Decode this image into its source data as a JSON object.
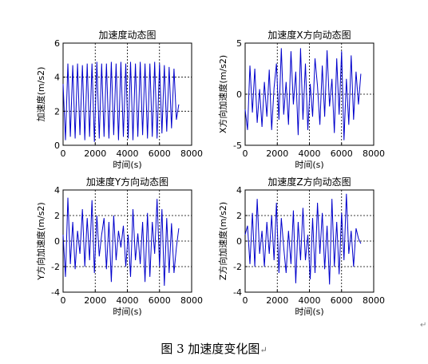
{
  "caption": {
    "text": "图 3  加速度变化图",
    "mark": "↵"
  },
  "stray_mark": "↵",
  "chart_data": [
    {
      "type": "line",
      "title": "加速度动态图",
      "xlabel": "时间(s)",
      "ylabel": "加速度(m/s2)",
      "xlim": [
        0,
        8000
      ],
      "ylim": [
        0,
        6
      ],
      "xticks": [
        0,
        2000,
        4000,
        6000,
        8000
      ],
      "yticks": [
        0,
        2,
        4,
        6
      ],
      "grid": true,
      "grid_style": "dotted",
      "color": "#0000cc",
      "duration": 7200,
      "x": [
        0,
        150,
        300,
        450,
        600,
        750,
        900,
        1050,
        1200,
        1350,
        1500,
        1650,
        1800,
        1950,
        2100,
        2250,
        2400,
        2550,
        2700,
        2850,
        3000,
        3150,
        3300,
        3450,
        3600,
        3750,
        3900,
        4050,
        4200,
        4350,
        4500,
        4650,
        4800,
        4950,
        5100,
        5250,
        5400,
        5550,
        5700,
        5850,
        6000,
        6150,
        6300,
        6450,
        6600,
        6750,
        6900,
        7050,
        7200
      ],
      "y": [
        3.6,
        0.3,
        4.8,
        0.5,
        4.7,
        0.4,
        4.8,
        0.6,
        4.7,
        0.3,
        4.8,
        0.5,
        4.8,
        0.2,
        4.9,
        0.4,
        4.8,
        0.5,
        4.8,
        0.4,
        4.9,
        0.6,
        4.8,
        0.3,
        4.9,
        0.5,
        4.8,
        0.4,
        4.9,
        0.3,
        4.8,
        0.5,
        4.9,
        0.6,
        4.8,
        0.4,
        4.8,
        0.5,
        4.9,
        0.4,
        4.8,
        0.7,
        4.7,
        0.8,
        4.6,
        1.0,
        4.5,
        1.5,
        2.4
      ]
    },
    {
      "type": "line",
      "title": "加速度X方向动态图",
      "xlabel": "时间(s)",
      "ylabel": "X方向加速度(m/s2)",
      "xlim": [
        0,
        8000
      ],
      "ylim": [
        -5,
        5
      ],
      "xticks": [
        0,
        2000,
        4000,
        6000,
        8000
      ],
      "yticks": [
        -5,
        0,
        5
      ],
      "grid": true,
      "grid_style": "dotted",
      "color": "#0000cc",
      "duration": 7200,
      "x": [
        0,
        150,
        300,
        450,
        600,
        750,
        900,
        1050,
        1200,
        1350,
        1500,
        1650,
        1800,
        1950,
        2100,
        2250,
        2400,
        2550,
        2700,
        2850,
        3000,
        3150,
        3300,
        3450,
        3600,
        3750,
        3900,
        4050,
        4200,
        4350,
        4500,
        4650,
        4800,
        4950,
        5100,
        5250,
        5400,
        5550,
        5700,
        5850,
        6000,
        6150,
        6300,
        6450,
        6600,
        6750,
        6900,
        7050,
        7200
      ],
      "y": [
        -1.5,
        -3.5,
        2.8,
        -1.8,
        2.5,
        -2.8,
        0.5,
        -3.2,
        1.2,
        -2.2,
        2.4,
        -3.5,
        0.6,
        3.0,
        -2.5,
        4.5,
        -2.0,
        1.2,
        -3.0,
        4.2,
        -1.0,
        2.2,
        -4.0,
        4.5,
        -2.5,
        3.0,
        -3.5,
        1.0,
        -2.2,
        3.5,
        0.8,
        -3.0,
        2.8,
        -2.2,
        4.3,
        -1.2,
        1.5,
        -3.8,
        3.5,
        -2.0,
        4.2,
        -4.5,
        1.5,
        -3.0,
        3.8,
        -2.5,
        2.2,
        -1.0,
        2.0
      ]
    },
    {
      "type": "line",
      "title": "加速度Y方向动态图",
      "xlabel": "时间(s)",
      "ylabel": "Y方向加速度(m/s2)",
      "xlim": [
        0,
        8000
      ],
      "ylim": [
        -4,
        4
      ],
      "xticks": [
        0,
        2000,
        4000,
        6000,
        8000
      ],
      "yticks": [
        -4,
        -2,
        0,
        2,
        4
      ],
      "grid": true,
      "grid_style": "dotted",
      "color": "#0000cc",
      "duration": 7200,
      "x": [
        0,
        150,
        300,
        450,
        600,
        750,
        900,
        1050,
        1200,
        1350,
        1500,
        1650,
        1800,
        1950,
        2100,
        2250,
        2400,
        2550,
        2700,
        2850,
        3000,
        3150,
        3300,
        3450,
        3600,
        3750,
        3900,
        4050,
        4200,
        4350,
        4500,
        4650,
        4800,
        4950,
        5100,
        5250,
        5400,
        5550,
        5700,
        5850,
        6000,
        6150,
        6300,
        6450,
        6600,
        6750,
        6900,
        7050,
        7200
      ],
      "y": [
        0.5,
        -2.8,
        3.4,
        -1.8,
        1.5,
        -2.2,
        0.8,
        -1.0,
        2.5,
        -2.0,
        1.8,
        -1.5,
        3.2,
        -2.5,
        2.0,
        -1.2,
        0.5,
        1.8,
        -2.2,
        1.5,
        -3.2,
        2.0,
        -1.5,
        0.8,
        -0.5,
        1.2,
        -2.0,
        0.5,
        -2.8,
        2.5,
        -1.5,
        0.6,
        -1.8,
        1.5,
        -3.2,
        2.2,
        -2.8,
        1.5,
        -1.0,
        3.3,
        -2.0,
        2.5,
        -3.5,
        1.8,
        -2.5,
        1.4,
        -2.5,
        -0.5,
        1.0
      ]
    },
    {
      "type": "line",
      "title": "加速度Z方向动态图",
      "xlabel": "时间(s)",
      "ylabel": "Z方向加速度(m/s2)",
      "xlim": [
        0,
        8000
      ],
      "ylim": [
        -4,
        4
      ],
      "xticks": [
        0,
        2000,
        4000,
        6000,
        8000
      ],
      "yticks": [
        -4,
        -2,
        0,
        2,
        4
      ],
      "grid": true,
      "grid_style": "dotted",
      "color": "#0000cc",
      "duration": 7200,
      "x": [
        0,
        150,
        300,
        450,
        600,
        750,
        900,
        1050,
        1200,
        1350,
        1500,
        1650,
        1800,
        1950,
        2100,
        2250,
        2400,
        2550,
        2700,
        2850,
        3000,
        3150,
        3300,
        3450,
        3600,
        3750,
        3900,
        4050,
        4200,
        4350,
        4500,
        4650,
        4800,
        4950,
        5100,
        5250,
        5400,
        5550,
        5700,
        5850,
        6000,
        6150,
        6300,
        6450,
        6600,
        6750,
        6900,
        7050,
        7200
      ],
      "y": [
        0.5,
        1.2,
        -1.8,
        2.2,
        -2.0,
        3.3,
        -1.0,
        0.8,
        -2.0,
        1.5,
        -1.0,
        2.0,
        -1.5,
        3.0,
        -2.5,
        1.8,
        -0.5,
        -2.5,
        0.8,
        -1.8,
        2.4,
        -3.3,
        1.5,
        -1.5,
        2.6,
        -1.5,
        0.5,
        -3.0,
        1.8,
        -2.5,
        3.0,
        -1.0,
        2.2,
        -2.2,
        1.2,
        -3.4,
        3.3,
        -2.0,
        1.5,
        -2.6,
        2.2,
        -1.5,
        3.7,
        -1.0,
        0.8,
        -2.0,
        1.0,
        0.2,
        -0.2
      ]
    }
  ]
}
